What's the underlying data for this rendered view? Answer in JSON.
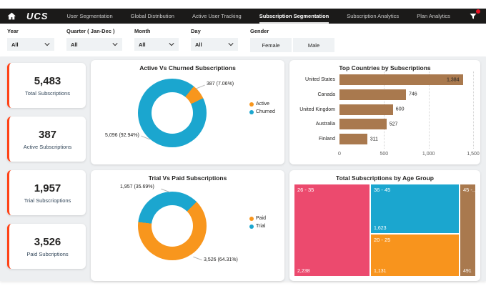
{
  "topbar": {
    "logo": "UCS",
    "tabs": [
      {
        "label": "User Segmentation",
        "active": false
      },
      {
        "label": "Global Distribution",
        "active": false
      },
      {
        "label": "Active User Tracking",
        "active": false
      },
      {
        "label": "Subscription Segmentation",
        "active": true
      },
      {
        "label": "Subscription Analytics",
        "active": false
      },
      {
        "label": "Plan Analytics",
        "active": false
      }
    ]
  },
  "filters": {
    "year": {
      "label": "Year",
      "value": "All"
    },
    "quarter": {
      "label": "Quarter ( Jan-Dec )",
      "value": "All"
    },
    "month": {
      "label": "Month",
      "value": "All"
    },
    "day": {
      "label": "Day",
      "value": "All"
    },
    "gender": {
      "label": "Gender",
      "options": [
        "Female",
        "Male"
      ]
    }
  },
  "kpis": [
    {
      "value": "5,483",
      "label": "Total Subscriptions"
    },
    {
      "value": "387",
      "label": "Active Subscriptions"
    },
    {
      "value": "1,957",
      "label": "Trial Subscrioptions"
    },
    {
      "value": "3,526",
      "label": "Paid Subcriptions"
    }
  ],
  "charts": {
    "active_churned": {
      "title": "Active Vs Churned Subscriptions",
      "chart_data": {
        "type": "donut",
        "start_deg": 39,
        "legend_position": "right",
        "slices": [
          {
            "name": "Active",
            "value": 387,
            "pct": 7.06,
            "color": "#f8961d",
            "callout": "387 (7.06%)"
          },
          {
            "name": "Churned",
            "value": 5096,
            "pct": 92.94,
            "color": "#1ba6cf",
            "callout": "5,096 (92.94%)"
          }
        ]
      }
    },
    "trial_paid": {
      "title": "Trial Vs Paid Subscriptions",
      "chart_data": {
        "type": "donut",
        "start_deg": 45,
        "legend_position": "right",
        "slices": [
          {
            "name": "Paid",
            "value": 3526,
            "pct": 64.31,
            "color": "#f8961d",
            "callout": "3,526 (64.31%)"
          },
          {
            "name": "Trial",
            "value": 1957,
            "pct": 35.69,
            "color": "#1ba6cf",
            "callout": "1,957 (35.69%)"
          }
        ]
      }
    },
    "top_countries": {
      "title": "Top Countries by Subscriptions",
      "chart_data": {
        "type": "bar",
        "orientation": "horizontal",
        "categories": [
          "United States",
          "Canada",
          "United Kingdom",
          "Australia",
          "Finland"
        ],
        "values": [
          1384,
          746,
          600,
          527,
          311
        ],
        "value_labels": [
          "1,384",
          "746",
          "600",
          "527",
          "311"
        ],
        "xticks": [
          "0",
          "500",
          "1,000",
          "1,500"
        ],
        "xlim": [
          0,
          1500
        ],
        "bar_color": "#a9794e",
        "grid": "dotted-vertical"
      }
    },
    "age_group": {
      "title": "Total Subscriptions by Age Group",
      "chart_data": {
        "type": "treemap",
        "groups": [
          {
            "label": "26 - 35",
            "value": 2238,
            "value_label": "2,238",
            "color": "#ec4a6e"
          },
          {
            "label": "36 - 45",
            "value": 1623,
            "value_label": "1,623",
            "color": "#1ba6cf"
          },
          {
            "label": "20 - 25",
            "value": 1131,
            "value_label": "1,131",
            "color": "#f8941d"
          },
          {
            "label": "45 -...",
            "value": 491,
            "value_label": "491",
            "color": "#a9794e"
          }
        ]
      }
    }
  },
  "colors": {
    "navbar_bg": "#1b1a19",
    "kpi_accent": "#ff4317",
    "page_bg": "#edeff1",
    "chart_orange": "#f8961d",
    "chart_blue": "#1ba6cf",
    "bar_brown": "#a9794e",
    "treemap_pink": "#ec4a6e",
    "badge_red": "#e81123"
  }
}
